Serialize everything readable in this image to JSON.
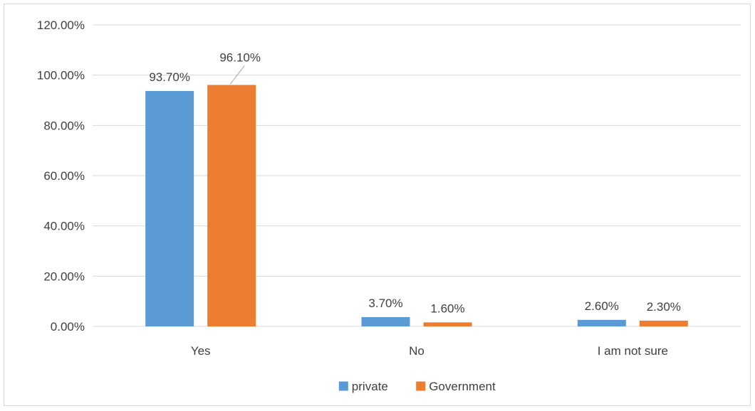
{
  "chart_data": {
    "type": "bar",
    "categories": [
      "Yes",
      "No",
      "I am not sure"
    ],
    "series": [
      {
        "name": "private",
        "values": [
          93.7,
          3.7,
          2.6
        ],
        "labels": [
          "93.70%",
          "3.70%",
          "2.60%"
        ],
        "color": "#5b9bd5"
      },
      {
        "name": "Government",
        "values": [
          96.1,
          1.6,
          2.3
        ],
        "labels": [
          "96.10%",
          "1.60%",
          "2.30%"
        ],
        "color": "#ed7d31"
      }
    ],
    "ylim": [
      0,
      120
    ],
    "yticks": [
      {
        "value": 0,
        "label": "0.00%"
      },
      {
        "value": 20,
        "label": "20.00%"
      },
      {
        "value": 40,
        "label": "40.00%"
      },
      {
        "value": 60,
        "label": "60.00%"
      },
      {
        "value": 80,
        "label": "80.00%"
      },
      {
        "value": 100,
        "label": "100.00%"
      },
      {
        "value": 120,
        "label": "120.00%"
      }
    ],
    "grid": true,
    "legend": "bottom",
    "title": "",
    "xlabel": "",
    "ylabel": ""
  }
}
